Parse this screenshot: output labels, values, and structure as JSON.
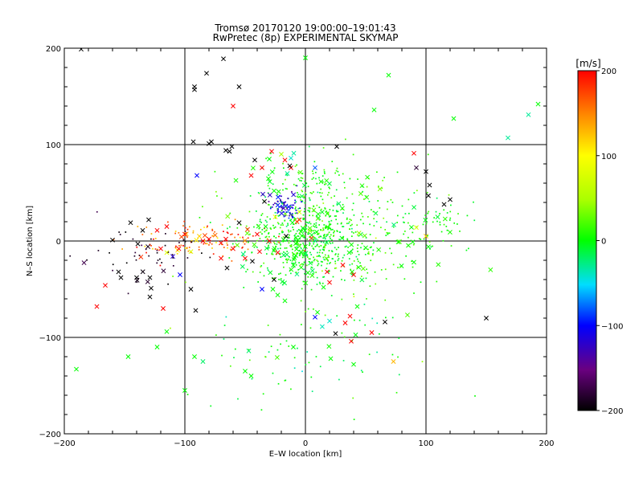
{
  "chart_data": {
    "type": "scatter",
    "title": "Tromsø 20170120 19:00:00–19:01:43",
    "subtitle": "RwPretec (8p) EXPERIMENTAL SKYMAP",
    "xlabel": "E–W location [km]",
    "ylabel": "N–S location [km]",
    "xlim": [
      -200,
      200
    ],
    "ylim": [
      -200,
      200
    ],
    "xticks": [
      "−200",
      "−100",
      "0",
      "100",
      "200"
    ],
    "yticks": [
      "−200",
      "−100",
      "0",
      "100",
      "200"
    ],
    "grid": "lines at x = −100, 0, 100 and y = −100, 0, 100",
    "colorbar": {
      "label": "[m/s]",
      "range": [
        -200,
        200
      ],
      "ticks": [
        "200",
        "100",
        "0",
        "−100",
        "−200"
      ],
      "colormap": "black-purple-blue-cyan-green-yellow-red"
    },
    "clusters": [
      {
        "center": [
          0,
          0
        ],
        "spread": [
          22,
          20
        ],
        "count": 450,
        "velocity": 0,
        "velocity_spread": 12
      },
      {
        "center": [
          20,
          5
        ],
        "spread": [
          45,
          35
        ],
        "count": 350,
        "velocity": 10,
        "velocity_spread": 18
      },
      {
        "center": [
          -18,
          35
        ],
        "spread": [
          8,
          7
        ],
        "count": 70,
        "velocity": -110,
        "velocity_spread": 20
      },
      {
        "center": [
          -90,
          0
        ],
        "spread": [
          30,
          9
        ],
        "count": 110,
        "velocity": 160,
        "velocity_spread": 35
      },
      {
        "center": [
          -130,
          -15
        ],
        "spread": [
          25,
          20
        ],
        "count": 50,
        "velocity": -190,
        "velocity_spread": 10
      },
      {
        "center": [
          0,
          -120
        ],
        "spread": [
          55,
          25
        ],
        "count": 70,
        "velocity": 0,
        "velocity_spread": 15
      },
      {
        "center": [
          100,
          20
        ],
        "spread": [
          18,
          15
        ],
        "count": 60,
        "velocity": 0,
        "velocity_spread": 10
      },
      {
        "center": [
          0,
          60
        ],
        "spread": [
          25,
          15
        ],
        "count": 80,
        "velocity": 5,
        "velocity_spread": 15
      }
    ],
    "points": [
      [
        -92,
        160,
        -200
      ],
      [
        -92,
        157,
        -200
      ],
      [
        -82,
        174,
        -200
      ],
      [
        -78,
        103,
        -200
      ],
      [
        -80,
        101,
        -200
      ],
      [
        -68,
        189,
        -200
      ],
      [
        -60,
        140,
        200
      ],
      [
        -55,
        160,
        -200
      ],
      [
        0,
        190,
        0
      ],
      [
        69,
        172,
        0
      ],
      [
        57,
        136,
        0
      ],
      [
        123,
        127,
        0
      ],
      [
        193,
        142,
        0
      ],
      [
        185,
        131,
        -30
      ],
      [
        168,
        107,
        -30
      ],
      [
        -186,
        199,
        -200
      ],
      [
        -190,
        -133,
        0
      ],
      [
        -173,
        -68,
        200
      ],
      [
        -166,
        -46,
        200
      ],
      [
        -100,
        -155,
        0
      ],
      [
        -92,
        -120,
        0
      ],
      [
        -85,
        -125,
        -20
      ],
      [
        -50,
        -135,
        0
      ],
      [
        -45,
        -140,
        0
      ],
      [
        -47,
        -114,
        -20
      ],
      [
        -10,
        -110,
        0
      ],
      [
        25,
        -96,
        -200
      ],
      [
        33,
        -85,
        200
      ],
      [
        37,
        -78,
        200
      ],
      [
        38,
        -104,
        200
      ],
      [
        55,
        -95,
        200
      ],
      [
        66,
        -84,
        -200
      ],
      [
        73,
        -125,
        130
      ],
      [
        21,
        -122,
        0
      ],
      [
        40,
        -128,
        0
      ],
      [
        -120,
        -8,
        200
      ],
      [
        -105,
        -8,
        200
      ],
      [
        -100,
        7,
        200
      ],
      [
        -85,
        0,
        200
      ],
      [
        -80,
        2,
        200
      ],
      [
        -70,
        -2,
        200
      ],
      [
        -66,
        2,
        200
      ],
      [
        -60,
        -8,
        200
      ],
      [
        -115,
        15,
        200
      ],
      [
        -123,
        11,
        200
      ],
      [
        -160,
        1,
        -200
      ],
      [
        -155,
        -32,
        -200
      ],
      [
        -153,
        -38,
        -200
      ],
      [
        -139,
        -3,
        -200
      ],
      [
        -145,
        19,
        -200
      ],
      [
        -130,
        22,
        -200
      ],
      [
        -135,
        11,
        -200
      ],
      [
        -115,
        -12,
        80
      ],
      [
        -95,
        -11,
        80
      ],
      [
        -88,
        5,
        120
      ],
      [
        -110,
        -16,
        -120
      ],
      [
        -104,
        -35,
        -100
      ],
      [
        -95,
        -50,
        -200
      ],
      [
        -91,
        -72,
        -200
      ],
      [
        -129,
        -58,
        -200
      ],
      [
        -128,
        -49,
        -200
      ],
      [
        -129,
        -38,
        -200
      ],
      [
        -140,
        -38,
        -200
      ],
      [
        -118,
        -70,
        200
      ],
      [
        -93,
        103,
        -200
      ],
      [
        -66,
        94,
        -200
      ],
      [
        -63,
        93,
        -200
      ],
      [
        -61,
        98,
        -200
      ],
      [
        -42,
        84,
        -200
      ],
      [
        -28,
        93,
        200
      ],
      [
        -36,
        76,
        200
      ],
      [
        -45,
        68,
        200
      ],
      [
        -17,
        84,
        200
      ],
      [
        -12,
        76,
        200
      ],
      [
        -15,
        70,
        -30
      ],
      [
        -90,
        68,
        -100
      ],
      [
        -34,
        41,
        -200
      ],
      [
        -26,
        52,
        0
      ],
      [
        -12,
        86,
        -40
      ],
      [
        8,
        76,
        -80
      ],
      [
        26,
        98,
        -200
      ],
      [
        -7,
        20,
        180
      ],
      [
        -5,
        22,
        180
      ],
      [
        5,
        3,
        180
      ],
      [
        18,
        -32,
        200
      ],
      [
        20,
        -43,
        200
      ],
      [
        -26,
        -40,
        -200
      ],
      [
        -27,
        -50,
        0
      ],
      [
        -17,
        -62,
        0
      ],
      [
        10,
        -74,
        0
      ],
      [
        8,
        -79,
        -100
      ],
      [
        20,
        -83,
        -40
      ],
      [
        43,
        -68,
        0
      ],
      [
        -36,
        -50,
        -100
      ],
      [
        31,
        -25,
        200
      ],
      [
        40,
        -35,
        200
      ],
      [
        -20,
        90,
        50
      ],
      [
        -13,
        78,
        -200
      ],
      [
        -30,
        85,
        0
      ],
      [
        -5,
        30,
        80
      ],
      [
        -25,
        25,
        100
      ],
      [
        -16,
        5,
        -200
      ],
      [
        -23,
        -12,
        200
      ],
      [
        -8,
        -15,
        0
      ],
      [
        -23,
        -56,
        0
      ],
      [
        -65,
        -28,
        -200
      ],
      [
        -70,
        -18,
        200
      ],
      [
        -50,
        -18,
        200
      ],
      [
        -40,
        7,
        200
      ],
      [
        -48,
        12,
        180
      ],
      [
        -55,
        19,
        -200
      ],
      [
        -33,
        15,
        0
      ],
      [
        -30,
        0,
        200
      ],
      [
        -38,
        -11,
        200
      ],
      [
        -44,
        -21,
        -200
      ],
      [
        -10,
        -25,
        0
      ],
      [
        2,
        -33,
        0
      ],
      [
        15,
        -48,
        0
      ],
      [
        90,
        91,
        200
      ],
      [
        100,
        72,
        -200
      ],
      [
        92,
        76,
        -180
      ],
      [
        103,
        58,
        -200
      ],
      [
        102,
        47,
        -200
      ],
      [
        115,
        38,
        -200
      ],
      [
        120,
        43,
        -200
      ],
      [
        100,
        5,
        120
      ],
      [
        92,
        14,
        80
      ],
      [
        102,
        -6,
        0
      ],
      [
        89,
        -1,
        0
      ],
      [
        77,
        -1,
        0
      ],
      [
        50,
        -7,
        0
      ],
      [
        150,
        -80,
        -200
      ],
      [
        -123,
        -110,
        0
      ],
      [
        -147,
        -120,
        0
      ],
      [
        -115,
        -94,
        0
      ],
      [
        90,
        -22,
        0
      ]
    ],
    "generated_counts": {
      "cross": 140,
      "dot": 1000
    }
  }
}
